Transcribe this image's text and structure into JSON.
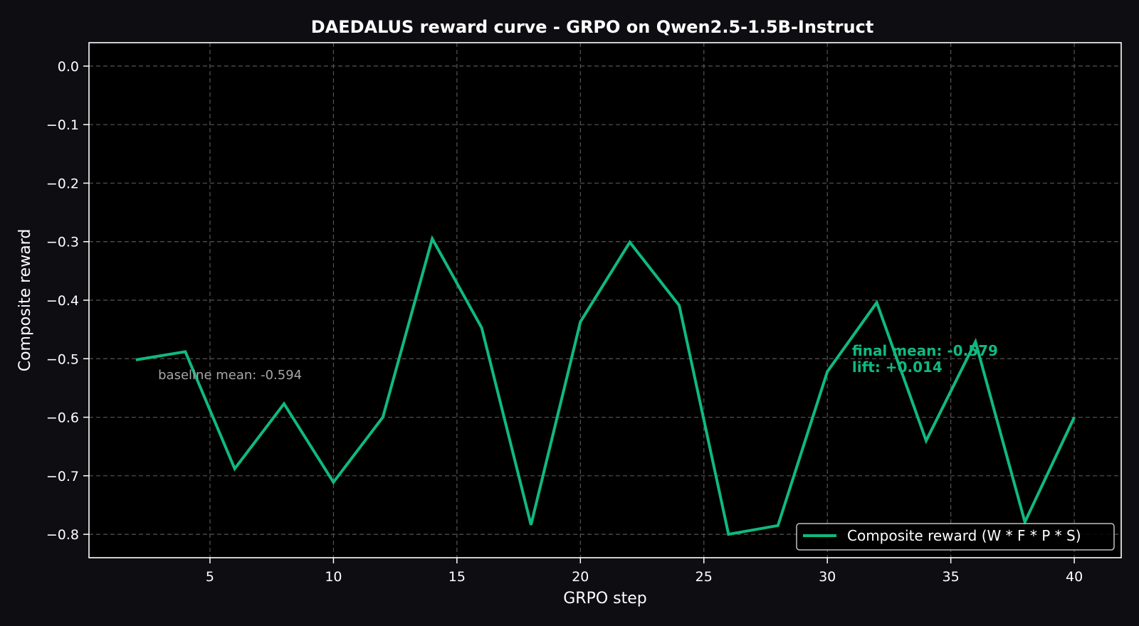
{
  "figure": {
    "background": "#0d0d12",
    "plot_background": "#000000",
    "grid_color": "#555555",
    "accent": "#10b981"
  },
  "chart_data": {
    "type": "line",
    "title": "DAEDALUS reward curve - GRPO on Qwen2.5-1.5B-Instruct",
    "xlabel": "GRPO step",
    "ylabel": "Composite reward",
    "xlim": [
      0.1,
      41.9
    ],
    "ylim": [
      -0.84,
      0.04
    ],
    "xticks": [
      5,
      10,
      15,
      20,
      25,
      30,
      35,
      40
    ],
    "xtick_labels": [
      "5",
      "10",
      "15",
      "20",
      "25",
      "30",
      "35",
      "40"
    ],
    "yticks": [
      0.0,
      -0.1,
      -0.2,
      -0.3,
      -0.4,
      -0.5,
      -0.6,
      -0.7,
      -0.8
    ],
    "ytick_labels": [
      "0.0",
      "−0.1",
      "−0.2",
      "−0.3",
      "−0.4",
      "−0.5",
      "−0.6",
      "−0.7",
      "−0.8"
    ],
    "grid": true,
    "legend_position": "lower right",
    "x": [
      2,
      4,
      6,
      8,
      10,
      12,
      14,
      16,
      18,
      20,
      22,
      24,
      26,
      28,
      30,
      32,
      34,
      36,
      38,
      40
    ],
    "series": [
      {
        "name": "Composite reward (W * F * P * S)",
        "color": "#10b981",
        "values": [
          -0.502,
          -0.488,
          -0.688,
          -0.577,
          -0.711,
          -0.6,
          -0.295,
          -0.447,
          -0.784,
          -0.437,
          -0.301,
          -0.409,
          -0.8,
          -0.785,
          -0.522,
          -0.404,
          -0.64,
          -0.471,
          -0.779,
          -0.6
        ]
      }
    ],
    "annotations": [
      {
        "text": "baseline mean: -0.594",
        "x": 2.9,
        "y": -0.535,
        "color": "#a6a6a6"
      },
      {
        "text": "final mean: -0.579",
        "x": 31.0,
        "y": -0.495,
        "color": "#10b981"
      },
      {
        "text": "lift: +0.014",
        "x": 31.0,
        "y": -0.523,
        "color": "#10b981"
      }
    ]
  },
  "legend": {
    "label": "Composite reward (W * F * P * S)"
  }
}
